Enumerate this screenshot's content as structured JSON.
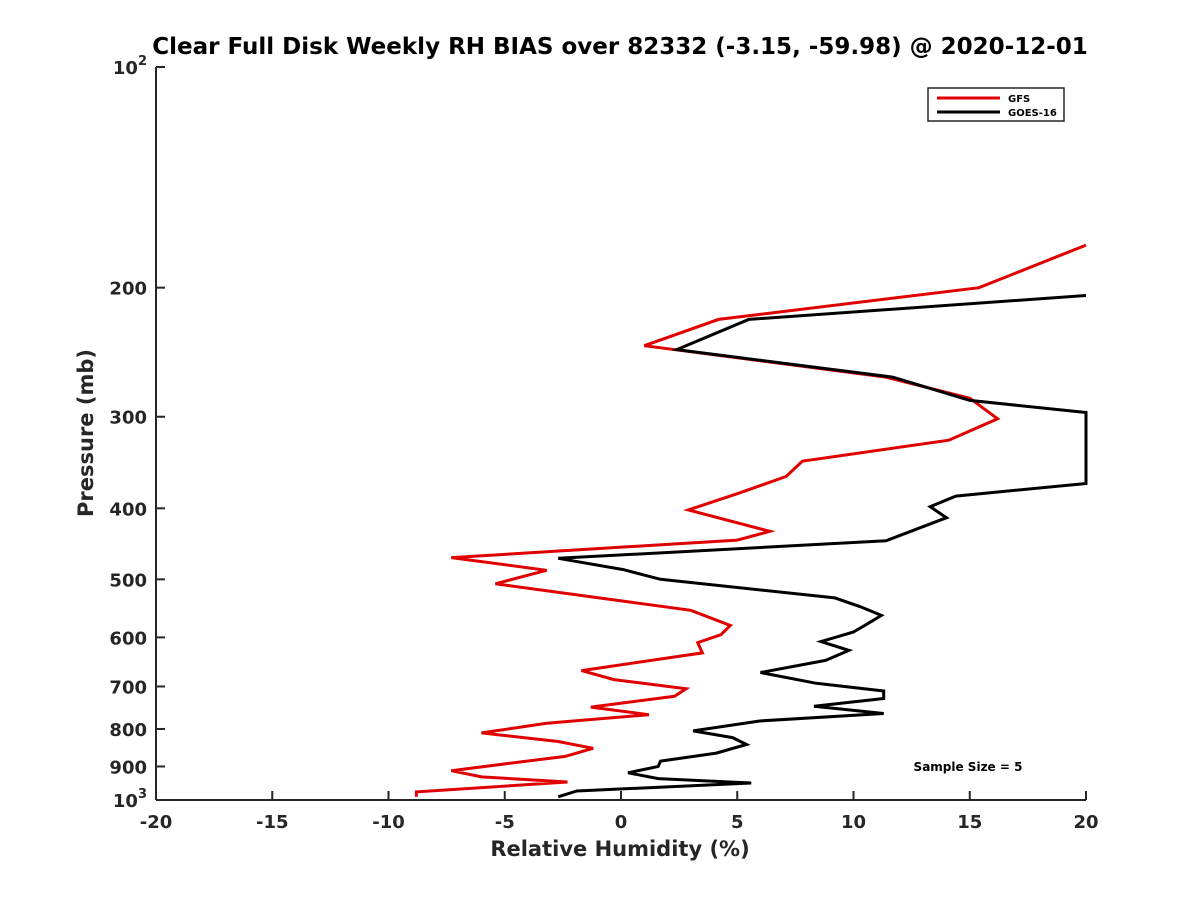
{
  "chart_data": {
    "type": "line",
    "title": "Clear Full Disk Weekly RH BIAS over 82332 (-3.15, -59.98) @ 2020-12-01",
    "xlabel": "Relative Humidity (%)",
    "ylabel": "Pressure (mb)",
    "xlim": [
      -20,
      20
    ],
    "ylim": [
      100,
      1000
    ],
    "y_scale": "log",
    "y_reversed": true,
    "grid": false,
    "legend_position": "top-right",
    "x_ticks": [
      {
        "value": -20,
        "label": "-20"
      },
      {
        "value": -15,
        "label": "-15"
      },
      {
        "value": -10,
        "label": "-10"
      },
      {
        "value": -5,
        "label": "-5"
      },
      {
        "value": 0,
        "label": "0"
      },
      {
        "value": 5,
        "label": "5"
      },
      {
        "value": 10,
        "label": "10"
      },
      {
        "value": 15,
        "label": "15"
      },
      {
        "value": 20,
        "label": "20"
      }
    ],
    "y_ticks": [
      {
        "value": 100,
        "label": "",
        "base": "10",
        "exp": "2"
      },
      {
        "value": 200,
        "label": "200"
      },
      {
        "value": 300,
        "label": "300"
      },
      {
        "value": 400,
        "label": "400"
      },
      {
        "value": 500,
        "label": "500"
      },
      {
        "value": 600,
        "label": "600"
      },
      {
        "value": 700,
        "label": "700"
      },
      {
        "value": 800,
        "label": "800"
      },
      {
        "value": 900,
        "label": "900"
      },
      {
        "value": 1000,
        "label": "",
        "base": "10",
        "exp": "3"
      }
    ],
    "series": [
      {
        "name": "GFS",
        "color": "#e00000",
        "points": [
          [
            20,
            175
          ],
          [
            15.4,
            200
          ],
          [
            4.2,
            221
          ],
          [
            1,
            240
          ],
          [
            11.4,
            265
          ],
          [
            15,
            283
          ],
          [
            16.2,
            302
          ],
          [
            14.1,
            323
          ],
          [
            7.8,
            345
          ],
          [
            7.1,
            362
          ],
          [
            5,
            382
          ],
          [
            2.9,
            402
          ],
          [
            6.4,
            430
          ],
          [
            5,
            442
          ],
          [
            -7.3,
            467
          ],
          [
            -3.2,
            486
          ],
          [
            -5.4,
            507
          ],
          [
            -1.5,
            527
          ],
          [
            3,
            551
          ],
          [
            4.7,
            578
          ],
          [
            4.3,
            595
          ],
          [
            3.3,
            610
          ],
          [
            3.5,
            630
          ],
          [
            -1.7,
            666
          ],
          [
            -0.3,
            685
          ],
          [
            2.8,
            705
          ],
          [
            2.3,
            722
          ],
          [
            -1.3,
            747
          ],
          [
            1.2,
            765
          ],
          [
            -3.2,
            786
          ],
          [
            -6,
            810
          ],
          [
            -2.7,
            832
          ],
          [
            -1.2,
            850
          ],
          [
            -2.4,
            872
          ],
          [
            -4.9,
            892
          ],
          [
            -7.3,
            912
          ],
          [
            -6,
            930
          ],
          [
            -2.3,
            945
          ],
          [
            -8.8,
            975
          ],
          [
            -8.8,
            990
          ]
        ]
      },
      {
        "name": "GOES-16",
        "color": "#000000",
        "points": [
          [
            20,
            205
          ],
          [
            5.5,
            221
          ],
          [
            2.4,
            243
          ],
          [
            11.7,
            265
          ],
          [
            15,
            285
          ],
          [
            20,
            296
          ],
          [
            20,
            370
          ],
          [
            14.4,
            385
          ],
          [
            13.3,
            398
          ],
          [
            14,
            412
          ],
          [
            11.4,
            443
          ],
          [
            -2.7,
            468
          ],
          [
            0.1,
            485
          ],
          [
            1.7,
            500
          ],
          [
            9.2,
            530
          ],
          [
            10.3,
            545
          ],
          [
            11.2,
            560
          ],
          [
            10.6,
            575
          ],
          [
            10,
            590
          ],
          [
            8.6,
            608
          ],
          [
            9.8,
            625
          ],
          [
            8.8,
            645
          ],
          [
            6,
            670
          ],
          [
            8.4,
            693
          ],
          [
            11.3,
            710
          ],
          [
            11.3,
            727
          ],
          [
            8.3,
            745
          ],
          [
            11.3,
            762
          ],
          [
            6,
            780
          ],
          [
            3.1,
            805
          ],
          [
            4.8,
            822
          ],
          [
            5.4,
            840
          ],
          [
            4.1,
            863
          ],
          [
            1.7,
            885
          ],
          [
            1.6,
            900
          ],
          [
            0.3,
            918
          ],
          [
            1.6,
            935
          ],
          [
            5.6,
            948
          ],
          [
            -1.9,
            972
          ],
          [
            -2.7,
            990
          ]
        ]
      }
    ],
    "annotation": "Sample Size = 5"
  }
}
